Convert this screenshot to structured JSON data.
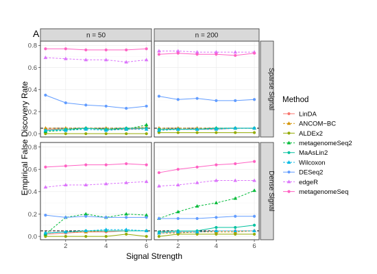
{
  "figure": {
    "tag": "A",
    "xlabel": "Signal Strength",
    "ylabel": "Empirical False Discovery Rate",
    "legend_title": "Method"
  },
  "chart_data": {
    "type": "line",
    "x": [
      1,
      2,
      3,
      4,
      5,
      6
    ],
    "xticks": [
      "2",
      "4",
      "6"
    ],
    "yticks": [
      "0.0",
      "0.2",
      "0.4",
      "0.6",
      "0.8"
    ],
    "xlim": [
      0.75,
      6.25
    ],
    "ylim": [
      -0.03,
      0.84
    ],
    "grid": true,
    "legend_position": "right",
    "reference_line": 0.05,
    "columns": [
      "n = 50",
      "n = 200"
    ],
    "rows": [
      "Sparse Signal",
      "Dense Signal"
    ],
    "methods": [
      {
        "name": "LinDA",
        "color": "#F8766D",
        "dash": "solid",
        "shape": "circle"
      },
      {
        "name": "ANCOM−BC",
        "color": "#D39200",
        "dash": "dashed",
        "shape": "triangle"
      },
      {
        "name": "ALDEx2",
        "color": "#93AA00",
        "dash": "solid",
        "shape": "circle"
      },
      {
        "name": "metagenomeSeq2",
        "color": "#00BA38",
        "dash": "dashed",
        "shape": "triangle"
      },
      {
        "name": "MaAsLin2",
        "color": "#00C19F",
        "dash": "solid",
        "shape": "circle"
      },
      {
        "name": "Wilcoxon",
        "color": "#00B9E3",
        "dash": "dashed",
        "shape": "triangle"
      },
      {
        "name": "DESeq2",
        "color": "#619CFF",
        "dash": "solid",
        "shape": "circle"
      },
      {
        "name": "edgeR",
        "color": "#DB72FB",
        "dash": "dashed",
        "shape": "triangle"
      },
      {
        "name": "metagenomeSeq",
        "color": "#FF61C3",
        "dash": "solid",
        "shape": "circle"
      }
    ],
    "panels": [
      {
        "row": 0,
        "col": 0,
        "series": {
          "LinDA": [
            0.04,
            0.04,
            0.05,
            0.04,
            0.04,
            0.05
          ],
          "ANCOM−BC": [
            0.05,
            0.05,
            0.05,
            0.05,
            0.05,
            0.06
          ],
          "ALDEx2": [
            0.0,
            0.0,
            0.0,
            0.0,
            0.0,
            0.0
          ],
          "metagenomeSeq2": [
            0.02,
            0.03,
            0.05,
            0.04,
            0.04,
            0.08
          ],
          "MaAsLin2": [
            0.03,
            0.04,
            0.05,
            0.04,
            0.05,
            0.05
          ],
          "Wilcoxon": [
            0.03,
            0.03,
            0.04,
            0.03,
            0.04,
            0.04
          ],
          "DESeq2": [
            0.35,
            0.28,
            0.26,
            0.25,
            0.23,
            0.25
          ],
          "edgeR": [
            0.69,
            0.68,
            0.67,
            0.67,
            0.65,
            0.67
          ],
          "metagenomeSeq": [
            0.77,
            0.77,
            0.76,
            0.76,
            0.76,
            0.77
          ]
        }
      },
      {
        "row": 0,
        "col": 1,
        "series": {
          "LinDA": [
            0.04,
            0.04,
            0.04,
            0.04,
            0.05,
            0.05
          ],
          "ANCOM−BC": [
            0.05,
            0.05,
            0.05,
            0.05,
            0.05,
            0.05
          ],
          "ALDEx2": [
            0.01,
            0.01,
            0.01,
            0.01,
            0.01,
            0.01
          ],
          "metagenomeSeq2": [
            0.03,
            0.04,
            0.04,
            0.05,
            0.05,
            0.05
          ],
          "MaAsLin2": [
            0.04,
            0.04,
            0.04,
            0.05,
            0.05,
            0.05
          ],
          "Wilcoxon": [
            0.03,
            0.04,
            0.04,
            0.04,
            0.05,
            0.05
          ],
          "DESeq2": [
            0.34,
            0.31,
            0.32,
            0.3,
            0.3,
            0.31
          ],
          "edgeR": [
            0.75,
            0.75,
            0.74,
            0.74,
            0.74,
            0.74
          ],
          "metagenomeSeq": [
            0.72,
            0.73,
            0.72,
            0.72,
            0.71,
            0.73
          ]
        }
      },
      {
        "row": 1,
        "col": 0,
        "series": {
          "LinDA": [
            0.02,
            0.03,
            0.04,
            0.04,
            0.05,
            0.05
          ],
          "ANCOM−BC": [
            0.03,
            0.04,
            0.04,
            0.05,
            0.05,
            0.05
          ],
          "ALDEx2": [
            0.0,
            0.0,
            0.0,
            0.0,
            0.02,
            0.0
          ],
          "metagenomeSeq2": [
            0.02,
            0.17,
            0.2,
            0.17,
            0.2,
            0.19
          ],
          "MaAsLin2": [
            0.03,
            0.04,
            0.05,
            0.05,
            0.05,
            0.05
          ],
          "Wilcoxon": [
            0.03,
            0.04,
            0.05,
            0.06,
            0.06,
            0.05
          ],
          "DESeq2": [
            0.19,
            0.17,
            0.18,
            0.17,
            0.17,
            0.17
          ],
          "edgeR": [
            0.44,
            0.46,
            0.46,
            0.47,
            0.48,
            0.49
          ],
          "metagenomeSeq": [
            0.62,
            0.63,
            0.64,
            0.64,
            0.65,
            0.64
          ]
        }
      },
      {
        "row": 1,
        "col": 1,
        "series": {
          "LinDA": [
            0.03,
            0.04,
            0.04,
            0.05,
            0.05,
            0.05
          ],
          "ANCOM−BC": [
            0.03,
            0.03,
            0.04,
            0.04,
            0.04,
            0.05
          ],
          "ALDEx2": [
            0.0,
            0.02,
            0.02,
            0.02,
            0.02,
            0.02
          ],
          "metagenomeSeq2": [
            0.16,
            0.22,
            0.27,
            0.3,
            0.34,
            0.41
          ],
          "MaAsLin2": [
            0.04,
            0.05,
            0.05,
            0.08,
            0.08,
            0.1
          ],
          "Wilcoxon": [
            0.03,
            0.04,
            0.04,
            0.05,
            0.05,
            0.05
          ],
          "DESeq2": [
            0.16,
            0.16,
            0.16,
            0.17,
            0.18,
            0.18
          ],
          "edgeR": [
            0.45,
            0.46,
            0.48,
            0.5,
            0.5,
            0.5
          ],
          "metagenomeSeq": [
            0.57,
            0.6,
            0.62,
            0.64,
            0.65,
            0.67
          ]
        }
      }
    ]
  }
}
